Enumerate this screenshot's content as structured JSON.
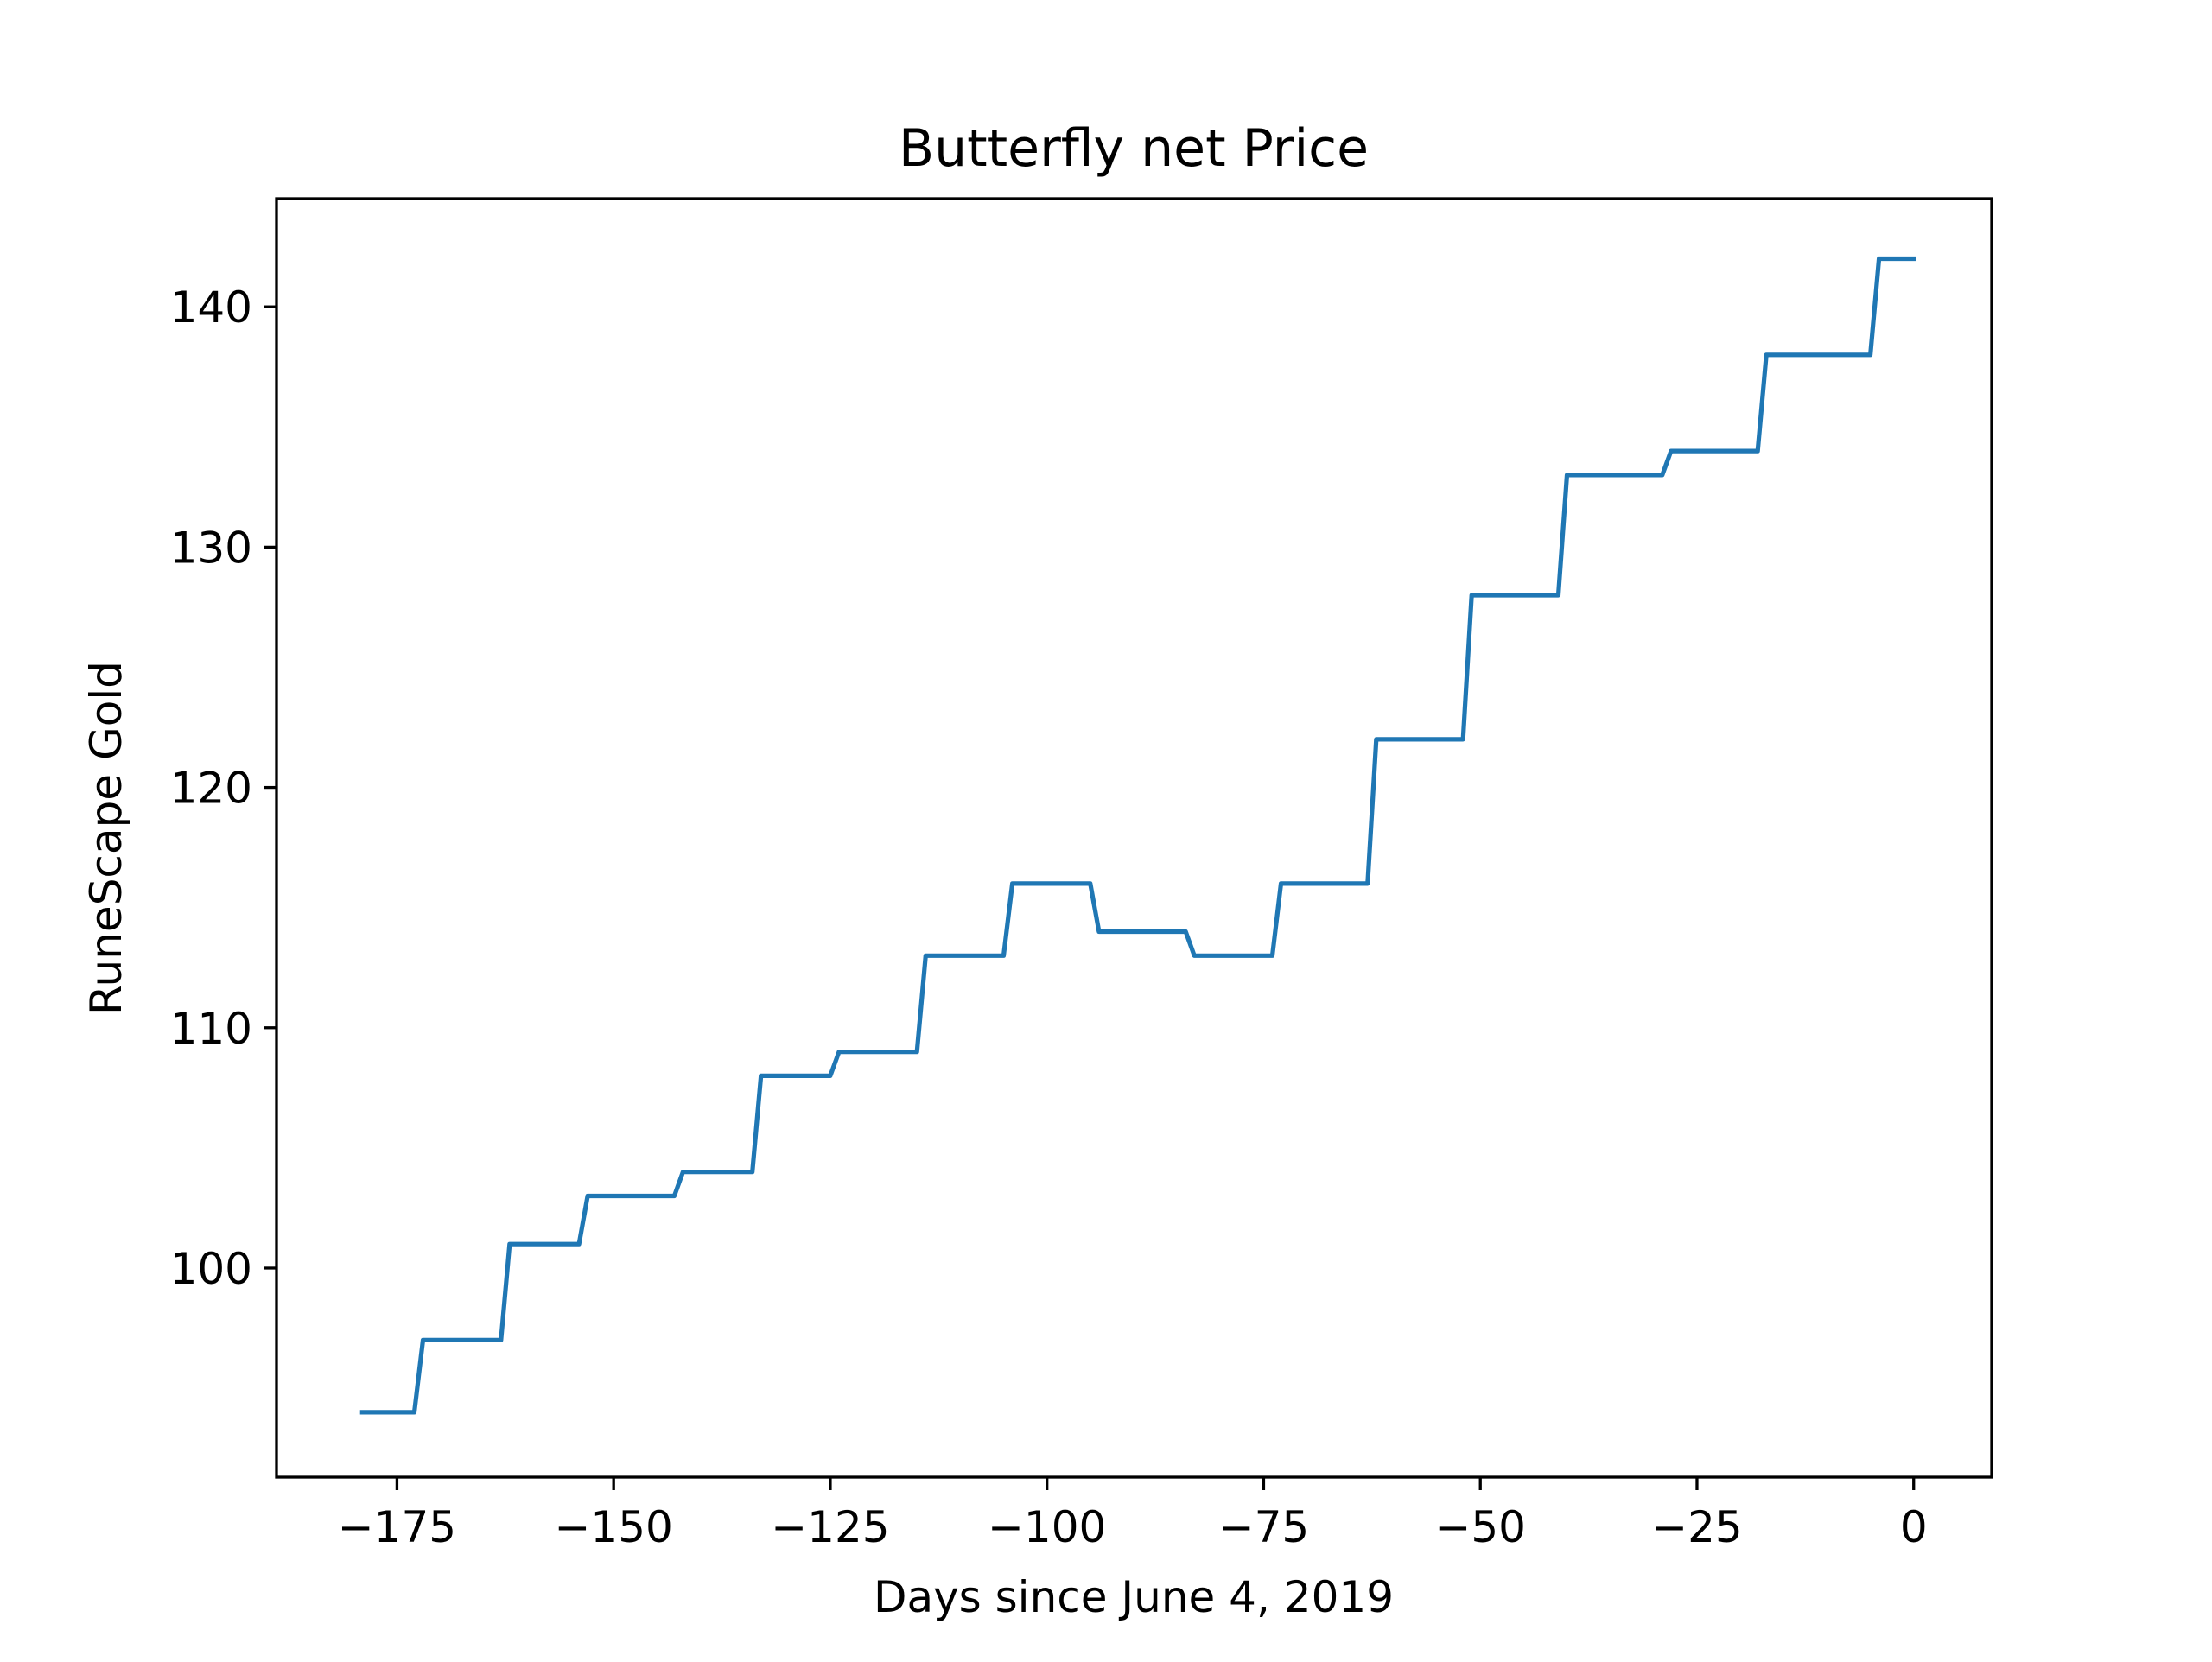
{
  "chart_data": {
    "type": "line",
    "title": "Butterfly net Price",
    "xlabel": "Days since June 4, 2019",
    "ylabel": "RuneScape Gold",
    "xlim": [
      -188.9,
      9
    ],
    "ylim": [
      91.3,
      144.5
    ],
    "x_ticks": [
      -175,
      -150,
      -125,
      -100,
      -75,
      -50,
      -25,
      0
    ],
    "x_tick_labels": [
      "−175",
      "−150",
      "−125",
      "−100",
      "−75",
      "−50",
      "−25",
      "0"
    ],
    "y_ticks": [
      100,
      110,
      120,
      130,
      140
    ],
    "y_tick_labels": [
      "100",
      "110",
      "120",
      "130",
      "140"
    ],
    "grid": false,
    "line_color": "#1f77b4",
    "series": [
      {
        "x": [
          -179,
          -173,
          -172,
          -163,
          -162,
          -154,
          -153,
          -143,
          -142,
          -134,
          -133,
          -125,
          -124,
          -115,
          -114,
          -105,
          -104,
          -95,
          -94,
          -84,
          -83,
          -74,
          -73,
          -63,
          -62,
          -52,
          -51,
          -41,
          -40,
          -29,
          -28,
          -18,
          -17,
          -5,
          -4,
          0
        ],
        "y": [
          94,
          94,
          97,
          97,
          101,
          101,
          103,
          103,
          104,
          104,
          108,
          108,
          109,
          109,
          113,
          113,
          116,
          116,
          114,
          114,
          113,
          113,
          116,
          116,
          122,
          122,
          128,
          128,
          133,
          133,
          134,
          134,
          138,
          138,
          142,
          142
        ]
      }
    ]
  }
}
